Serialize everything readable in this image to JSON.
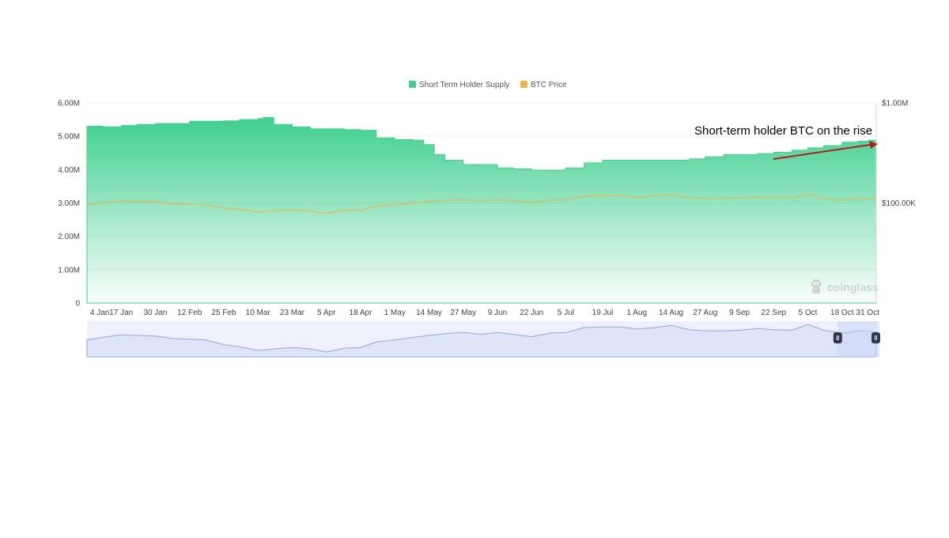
{
  "chart_data": {
    "type": "area",
    "title": "",
    "legend": {
      "placement": "top-center",
      "entries": [
        {
          "name": "Short Term Holder Supply",
          "color": "#3fcf8e"
        },
        {
          "name": "BTC Price",
          "color": "#e8b84a"
        }
      ]
    },
    "x_tick_labels": [
      "4 Jan",
      "17 Jan",
      "30 Jan",
      "12 Feb",
      "25 Feb",
      "10 Mar",
      "23 Mar",
      "5 Apr",
      "18 Apr",
      "1 May",
      "14 May",
      "27 May",
      "9 Jun",
      "22 Jun",
      "5 Jul",
      "19 Jul",
      "1 Aug",
      "14 Aug",
      "27 Aug",
      "9 Sep",
      "22 Sep",
      "5 Oct",
      "18 Oct",
      "31 Oct"
    ],
    "y_left": {
      "min": 0,
      "max": 6000000,
      "tick_labels": [
        "0",
        "1.00M",
        "2.00M",
        "3.00M",
        "4.00M",
        "5.00M",
        "6.00M"
      ]
    },
    "y_right": {
      "scale": "log",
      "min": 10000,
      "max": 1000000,
      "tick_labels": [
        "$100.00K",
        "$1.00M"
      ]
    },
    "grid": true,
    "series": [
      {
        "name": "Short Term Holder Supply",
        "axis": "left",
        "color": "#3fcf8e",
        "points": [
          [
            "4 Jan",
            5.3
          ],
          [
            "10 Jan",
            5.28
          ],
          [
            "17 Jan",
            5.32
          ],
          [
            "23 Jan",
            5.35
          ],
          [
            "30 Jan",
            5.38
          ],
          [
            "6 Feb",
            5.38
          ],
          [
            "12 Feb",
            5.45
          ],
          [
            "18 Feb",
            5.45
          ],
          [
            "25 Feb",
            5.46
          ],
          [
            "3 Mar",
            5.5
          ],
          [
            "10 Mar",
            5.53
          ],
          [
            "12 Mar",
            5.56
          ],
          [
            "16 Mar",
            5.35
          ],
          [
            "23 Mar",
            5.28
          ],
          [
            "30 Mar",
            5.22
          ],
          [
            "5 Apr",
            5.22
          ],
          [
            "12 Apr",
            5.2
          ],
          [
            "18 Apr",
            5.18
          ],
          [
            "24 Apr",
            4.95
          ],
          [
            "1 May",
            4.9
          ],
          [
            "8 May",
            4.88
          ],
          [
            "12 May",
            4.75
          ],
          [
            "16 May",
            4.45
          ],
          [
            "20 May",
            4.28
          ],
          [
            "27 May",
            4.15
          ],
          [
            "3 Jun",
            4.15
          ],
          [
            "9 Jun",
            4.05
          ],
          [
            "15 Jun",
            4.02
          ],
          [
            "22 Jun",
            3.98
          ],
          [
            "29 Jun",
            3.98
          ],
          [
            "5 Jul",
            4.05
          ],
          [
            "12 Jul",
            4.2
          ],
          [
            "19 Jul",
            4.28
          ],
          [
            "26 Jul",
            4.28
          ],
          [
            "1 Aug",
            4.28
          ],
          [
            "8 Aug",
            4.28
          ],
          [
            "14 Aug",
            4.28
          ],
          [
            "21 Aug",
            4.32
          ],
          [
            "27 Aug",
            4.38
          ],
          [
            "3 Sep",
            4.45
          ],
          [
            "9 Sep",
            4.45
          ],
          [
            "16 Sep",
            4.48
          ],
          [
            "22 Sep",
            4.52
          ],
          [
            "29 Sep",
            4.58
          ],
          [
            "5 Oct",
            4.65
          ],
          [
            "11 Oct",
            4.72
          ],
          [
            "18 Oct",
            4.82
          ],
          [
            "24 Oct",
            4.85
          ],
          [
            "28 Oct",
            4.88
          ],
          [
            "31 Oct",
            4.9
          ]
        ]
      },
      {
        "name": "BTC Price",
        "axis": "right",
        "color": "#e8b84a",
        "points": [
          [
            "4 Jan",
            96000
          ],
          [
            "10 Jan",
            100000
          ],
          [
            "17 Jan",
            104000
          ],
          [
            "23 Jan",
            103000
          ],
          [
            "30 Jan",
            102000
          ],
          [
            "6 Feb",
            98000
          ],
          [
            "12 Feb",
            97000
          ],
          [
            "18 Feb",
            96000
          ],
          [
            "25 Feb",
            89000
          ],
          [
            "3 Mar",
            86000
          ],
          [
            "10 Mar",
            81000
          ],
          [
            "16 Mar",
            83000
          ],
          [
            "23 Mar",
            85000
          ],
          [
            "30 Mar",
            83000
          ],
          [
            "5 Apr",
            79000
          ],
          [
            "12 Apr",
            84000
          ],
          [
            "18 Apr",
            85000
          ],
          [
            "24 Apr",
            93000
          ],
          [
            "1 May",
            96000
          ],
          [
            "8 May",
            100000
          ],
          [
            "14 May",
            103000
          ],
          [
            "20 May",
            106000
          ],
          [
            "27 May",
            108000
          ],
          [
            "3 Jun",
            105000
          ],
          [
            "9 Jun",
            108000
          ],
          [
            "15 Jun",
            105000
          ],
          [
            "22 Jun",
            101000
          ],
          [
            "29 Jun",
            107000
          ],
          [
            "5 Jul",
            108000
          ],
          [
            "12 Jul",
            117000
          ],
          [
            "19 Jul",
            118000
          ],
          [
            "26 Jul",
            118000
          ],
          [
            "1 Aug",
            114000
          ],
          [
            "8 Aug",
            117000
          ],
          [
            "14 Aug",
            121000
          ],
          [
            "21 Aug",
            113000
          ],
          [
            "27 Aug",
            111000
          ],
          [
            "3 Sep",
            111000
          ],
          [
            "9 Sep",
            112000
          ],
          [
            "16 Sep",
            115000
          ],
          [
            "22 Sep",
            113000
          ],
          [
            "29 Sep",
            112000
          ],
          [
            "5 Oct",
            123000
          ],
          [
            "11 Oct",
            112000
          ],
          [
            "18 Oct",
            107000
          ],
          [
            "24 Oct",
            111000
          ],
          [
            "31 Oct",
            109000
          ]
        ]
      }
    ],
    "annotation": {
      "text": "Short-term holder BTC on the rise",
      "color": "#000000",
      "arrow_color": "#b01e1e"
    },
    "watermark": "coinglass",
    "navigator": {
      "visible_range": [
        "18 Oct",
        "31 Oct"
      ]
    }
  }
}
